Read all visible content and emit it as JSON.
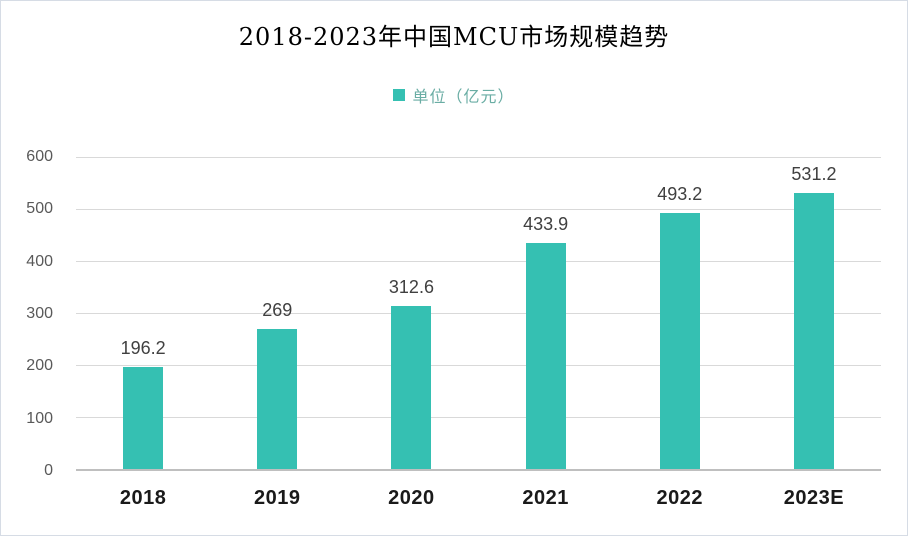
{
  "window": {
    "background": "#ffffff",
    "border_color": "#d6dce5"
  },
  "chart_data": {
    "type": "bar",
    "title": "2018-2023年中国MCU市场规模趋势",
    "legend": {
      "label": "单位（亿元）",
      "position": "top-center",
      "marker_color": "#35c0b2",
      "text_color": "#6aada4"
    },
    "categories": [
      "2018",
      "2019",
      "2020",
      "2021",
      "2022",
      "2023E"
    ],
    "values": [
      196.2,
      269,
      312.6,
      433.9,
      493.2,
      531.2
    ],
    "series_name": "单位（亿元）",
    "xlabel": "",
    "ylabel": "",
    "ylim": [
      0,
      600
    ],
    "yticks": [
      0,
      100,
      200,
      300,
      400,
      500,
      600
    ],
    "grid": true,
    "bar_color": "#35c0b2",
    "gridline_color": "#d9d9d9",
    "axis_line_color": "#bfbfbf",
    "data_label_color": "#404040",
    "x_label_color": "#1a1a1a",
    "y_label_color": "#595959"
  }
}
